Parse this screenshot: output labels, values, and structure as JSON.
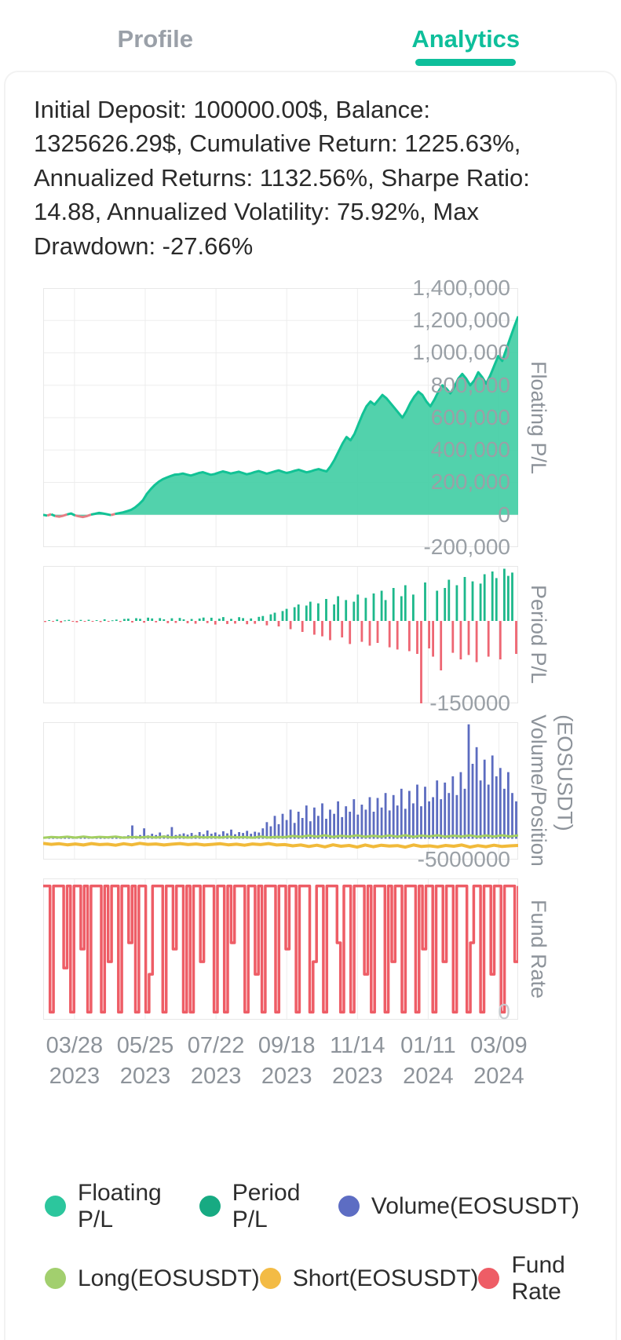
{
  "tabs": {
    "profile": "Profile",
    "analytics": "Analytics"
  },
  "summary": {
    "text": "Initial Deposit: 100000.00$, Balance: 1325626.29$, Cumulative Return: 1225.63%, Annualized Returns: 1132.56%, Sharpe Ratio: 14.88, Annualized Volatility: 75.92%, Max Drawdown: -27.66%"
  },
  "x_axis": {
    "tick_labels": [
      [
        "03/28",
        "2023"
      ],
      [
        "05/25",
        "2023"
      ],
      [
        "07/22",
        "2023"
      ],
      [
        "09/18",
        "2023"
      ],
      [
        "11/14",
        "2023"
      ],
      [
        "01/11",
        "2024"
      ],
      [
        "03/09",
        "2024"
      ]
    ]
  },
  "chart_data": [
    {
      "type": "area",
      "name": "floating-pl",
      "ylabel": "Floating P/L",
      "ylim": [
        -200000,
        1400000
      ],
      "yticks": [
        {
          "label": "1,400,000",
          "value": 1400000
        },
        {
          "label": "1,200,000",
          "value": 1200000
        },
        {
          "label": "1,000,000",
          "value": 1000000
        },
        {
          "label": "800,000",
          "value": 800000
        },
        {
          "label": "600,000",
          "value": 600000
        },
        {
          "label": "400,000",
          "value": 400000
        },
        {
          "label": "200,000",
          "value": 200000
        },
        {
          "label": "0",
          "value": 0
        },
        {
          "label": "-200,000",
          "value": -200000
        }
      ],
      "hgrid": [
        -200000,
        0,
        200000,
        400000,
        600000,
        800000,
        1000000,
        1200000,
        1400000
      ],
      "fill_color": "#3fcda3",
      "fill_opacity": 0.9,
      "line_color_positive": "#12c295",
      "line_color_negative": "#e57d84",
      "values": [
        0,
        -5000,
        3000,
        -8000,
        -12000,
        -6000,
        2000,
        8000,
        -4000,
        -10000,
        -14000,
        -8000,
        1000,
        6000,
        12000,
        8000,
        3000,
        -2000,
        5000,
        10000,
        15000,
        22000,
        30000,
        45000,
        65000,
        90000,
        130000,
        160000,
        185000,
        205000,
        220000,
        230000,
        240000,
        248000,
        250000,
        255000,
        248000,
        242000,
        250000,
        258000,
        263000,
        255000,
        247000,
        252000,
        260000,
        268000,
        262000,
        255000,
        260000,
        266000,
        258000,
        250000,
        256000,
        264000,
        270000,
        262000,
        254000,
        260000,
        268000,
        274000,
        266000,
        258000,
        264000,
        272000,
        278000,
        270000,
        262000,
        268000,
        276000,
        282000,
        274000,
        268000,
        300000,
        340000,
        390000,
        440000,
        480000,
        460000,
        500000,
        560000,
        620000,
        670000,
        700000,
        680000,
        710000,
        740000,
        720000,
        690000,
        660000,
        630000,
        600000,
        640000,
        690000,
        730000,
        760000,
        740000,
        700000,
        670000,
        710000,
        760000,
        800000,
        780000,
        750000,
        790000,
        840000,
        870000,
        840000,
        800000,
        830000,
        880000,
        850000,
        810000,
        860000,
        920000,
        980000,
        950000,
        1020000,
        1090000,
        1160000,
        1225626
      ]
    },
    {
      "type": "bar",
      "name": "period-pl",
      "ylabel": "Period P/L",
      "ylim": [
        -150000,
        100000
      ],
      "yticks": [
        {
          "label": "-150000",
          "value": -150000
        }
      ],
      "bar_color_positive": "#1db88b",
      "bar_color_negative": "#ee6673",
      "values": [
        -2000,
        1500,
        -1000,
        2500,
        -3000,
        1000,
        2000,
        -1500,
        -2500,
        1800,
        -1200,
        2200,
        -800,
        1500,
        -2000,
        3000,
        -1000,
        1200,
        2400,
        -1800,
        3500,
        4200,
        -2800,
        5000,
        3800,
        -3200,
        6000,
        4500,
        -2500,
        5200,
        3000,
        -4000,
        4800,
        -3500,
        5500,
        2800,
        -4200,
        3600,
        -5000,
        4400,
        6200,
        -3800,
        5800,
        -6500,
        4200,
        7000,
        -5500,
        3900,
        -4800,
        6800,
        5200,
        -6000,
        4600,
        -5200,
        7500,
        9000,
        -8000,
        12000,
        15000,
        -10000,
        18000,
        22000,
        -15000,
        25000,
        30000,
        -20000,
        28000,
        35000,
        -25000,
        32000,
        -28000,
        40000,
        -35000,
        30000,
        45000,
        -30000,
        38000,
        -42000,
        35000,
        48000,
        -38000,
        42000,
        -45000,
        50000,
        -40000,
        55000,
        38000,
        -48000,
        60000,
        -52000,
        45000,
        65000,
        -55000,
        48000,
        -60000,
        -150000,
        70000,
        -50000,
        -65000,
        55000,
        -90000,
        60000,
        75000,
        -58000,
        65000,
        -70000,
        80000,
        -62000,
        72000,
        -75000,
        68000,
        85000,
        -65000,
        90000,
        78000,
        -70000,
        95000,
        82000,
        88000,
        -60000
      ]
    },
    {
      "type": "composite",
      "name": "volume-position",
      "ylabel": "Volume/Position",
      "ylabel2": "(EOSUSDT)",
      "ylim": [
        -5000000,
        28000000
      ],
      "yticks": [
        {
          "label": "-5000000",
          "value": -5000000
        }
      ],
      "bar_color": "#5c6cc0",
      "long_color": "#a3cf62",
      "short_color": "#f1ba3a",
      "volume": [
        400000,
        300000,
        500000,
        350000,
        600000,
        280000,
        450000,
        380000,
        520000,
        300000,
        420000,
        360000,
        480000,
        400000,
        550000,
        320000,
        460000,
        390000,
        500000,
        430000,
        600000,
        800000,
        3200000,
        700000,
        900000,
        2500000,
        800000,
        1200000,
        900000,
        1500000,
        800000,
        1000000,
        2800000,
        900000,
        1100000,
        1300000,
        1000000,
        1400000,
        900000,
        1600000,
        1100000,
        2000000,
        1200000,
        1500000,
        1000000,
        1800000,
        1300000,
        2200000,
        1100000,
        1600000,
        1400000,
        1900000,
        1200000,
        1700000,
        1500000,
        2500000,
        4000000,
        3000000,
        5500000,
        3500000,
        6000000,
        4500000,
        7000000,
        3800000,
        6500000,
        5000000,
        8000000,
        4200000,
        7500000,
        5500000,
        8500000,
        4800000,
        7000000,
        6000000,
        9000000,
        5200000,
        7800000,
        6500000,
        9500000,
        5800000,
        8200000,
        7000000,
        10000000,
        6500000,
        9800000,
        7500000,
        11000000,
        6800000,
        10500000,
        8000000,
        12000000,
        7200000,
        11500000,
        8500000,
        13000000,
        7800000,
        12500000,
        9000000,
        10000000,
        14000000,
        9500000,
        13500000,
        11000000,
        15000000,
        10500000,
        16000000,
        12000000,
        27500000,
        18000000,
        22000000,
        14000000,
        19000000,
        13000000,
        20000000,
        15000000,
        17000000,
        12000000,
        16000000,
        11000000,
        9000000
      ],
      "long": [
        250000,
        420000,
        320000,
        480000,
        280000,
        520000,
        300000,
        450000,
        350000,
        500000,
        270000,
        430000,
        310000,
        470000,
        290000,
        510000,
        330000,
        460000,
        280000,
        490000,
        320000,
        440000,
        300000,
        480000,
        350000,
        420000,
        260000,
        500000,
        340000,
        450000,
        400000,
        650000,
        480000,
        750000,
        520000,
        820000,
        450000,
        700000,
        550000,
        800000,
        480000,
        720000,
        530000,
        780000,
        500000,
        850000,
        460000,
        760000,
        580000,
        820000,
        510000,
        740000,
        560000,
        800000,
        490000,
        770000,
        540000,
        830000,
        570000,
        780000
      ],
      "short": [
        -1100000,
        -1350000,
        -1200000,
        -1450000,
        -1250000,
        -1500000,
        -1150000,
        -1400000,
        -1300000,
        -1550000,
        -1200000,
        -1450000,
        -1100000,
        -1350000,
        -1250000,
        -1500000,
        -1300000,
        -1150000,
        -1400000,
        -1250000,
        -1500000,
        -1350000,
        -1200000,
        -1450000,
        -1300000,
        -1550000,
        -1250000,
        -1400000,
        -1150000,
        -1500000,
        -1400000,
        -1700000,
        -1500000,
        -1850000,
        -1550000,
        -1950000,
        -1450000,
        -1800000,
        -1600000,
        -2000000,
        -1500000,
        -1900000,
        -1550000,
        -1750000,
        -1650000,
        -2000000,
        -1500000,
        -1850000,
        -1700000,
        -1950000,
        -1600000,
        -1800000,
        -1500000,
        -2000000,
        -1650000,
        -1900000,
        -1550000,
        -1850000,
        -1700000,
        -1600000
      ]
    },
    {
      "type": "step",
      "name": "fund-rate",
      "ylabel": "Fund Rate",
      "ylim": [
        -0.06,
        1.06
      ],
      "yticks": [
        {
          "label": "0",
          "value": 0,
          "muted": true
        }
      ],
      "line_color": "#ee5d66",
      "note": "relative scale; only the 0 tick is labeled on screen",
      "values": [
        1,
        1,
        0,
        1,
        1,
        1,
        0.35,
        1,
        0,
        1,
        1,
        0.5,
        1,
        0,
        1,
        1,
        1,
        0,
        1,
        0.4,
        1,
        1,
        0,
        1,
        1,
        0.55,
        1,
        0,
        1,
        1,
        0,
        0.3,
        1,
        1,
        1,
        0,
        1,
        1,
        0.5,
        1,
        1,
        0,
        1,
        0,
        1,
        1,
        0.4,
        1,
        1,
        1,
        0,
        1,
        1,
        0,
        1,
        0.55,
        1,
        1,
        1,
        0,
        1,
        1,
        0.3,
        1,
        0,
        1,
        1,
        1,
        0,
        1,
        1,
        0.5,
        1,
        1,
        0,
        1,
        1,
        1,
        0,
        0.4,
        1,
        1,
        0,
        1,
        1,
        1,
        0.55,
        0,
        1,
        1,
        0,
        1,
        1,
        1,
        0.3,
        1,
        0,
        1,
        1,
        1,
        0,
        1,
        0.4,
        1,
        1,
        0,
        1,
        1,
        1,
        0,
        1,
        0.5,
        1,
        1,
        0,
        1,
        1,
        0.4,
        1,
        1,
        0,
        1,
        1,
        1,
        0,
        0.55,
        1,
        1,
        0,
        1,
        1,
        0.3,
        1,
        1,
        0,
        1,
        1,
        1,
        0.4,
        1
      ]
    }
  ],
  "legend": [
    {
      "label": "Floating P/L",
      "color": "#2cc69d",
      "row": 1
    },
    {
      "label": "Period P/L",
      "color": "#17aa82",
      "row": 1
    },
    {
      "label": "Volume(EOSUSDT)",
      "color": "#5d6dc3",
      "row": 1
    },
    {
      "label": "Long(EOSUSDT)",
      "color": "#a2cf6e",
      "row": 2
    },
    {
      "label": "Short(EOSUSDT)",
      "color": "#f3bb45",
      "row": 2
    },
    {
      "label": "Fund Rate",
      "color": "#ee5d66",
      "row": 2
    }
  ]
}
